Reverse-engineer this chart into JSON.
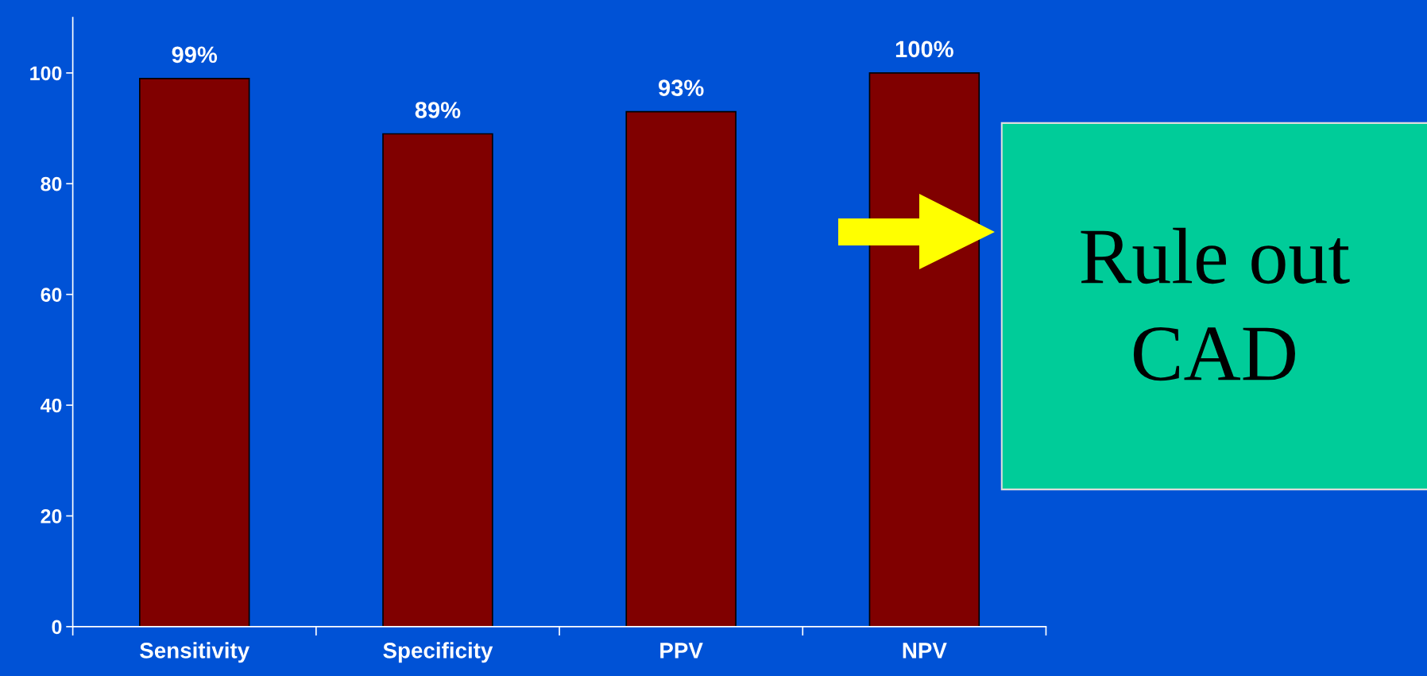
{
  "chart_data": {
    "type": "bar",
    "categories": [
      "Sensitivity",
      "Specificity",
      "PPV",
      "NPV"
    ],
    "values": [
      99,
      89,
      93,
      100
    ],
    "color": "#800000",
    "value_labels": [
      "99%",
      "89%",
      "93%",
      "100%"
    ],
    "ylim": [
      0,
      110
    ],
    "yticks": [
      0,
      20,
      40,
      60,
      80,
      100
    ],
    "grid": false,
    "legend": false,
    "annotations": [
      "Rule out\nCAD"
    ]
  }
}
